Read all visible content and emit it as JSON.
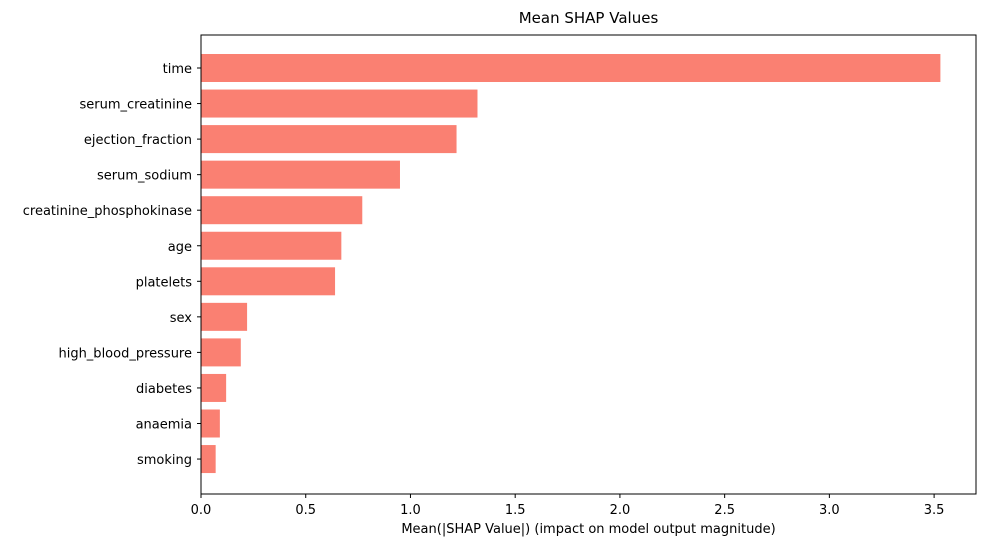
{
  "chart_data": {
    "type": "bar",
    "orientation": "horizontal",
    "title": "Mean SHAP Values",
    "xlabel": "Mean(|SHAP Value|) (impact on model output magnitude)",
    "ylabel": "",
    "categories": [
      "time",
      "serum_creatinine",
      "ejection_fraction",
      "serum_sodium",
      "creatinine_phosphokinase",
      "age",
      "platelets",
      "sex",
      "high_blood_pressure",
      "diabetes",
      "anaemia",
      "smoking"
    ],
    "values": [
      3.53,
      1.32,
      1.22,
      0.95,
      0.77,
      0.67,
      0.64,
      0.22,
      0.19,
      0.12,
      0.09,
      0.07
    ],
    "xlim": [
      0,
      3.7
    ],
    "xticks": [
      "0.0",
      "0.5",
      "1.0",
      "1.5",
      "2.0",
      "2.5",
      "3.0",
      "3.5"
    ],
    "bar_color": "#fa8072",
    "grid": false,
    "legend": "none"
  }
}
